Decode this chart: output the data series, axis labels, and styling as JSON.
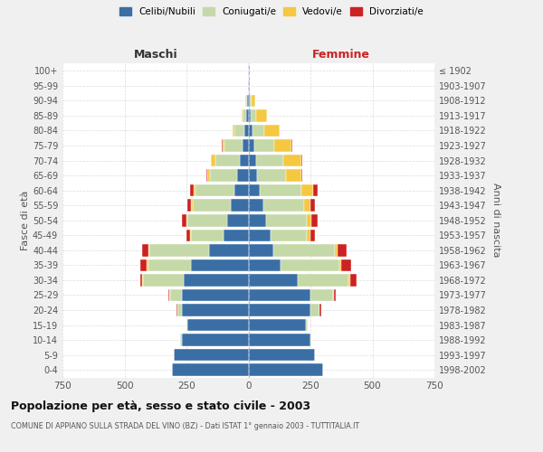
{
  "age_groups": [
    "0-4",
    "5-9",
    "10-14",
    "15-19",
    "20-24",
    "25-29",
    "30-34",
    "35-39",
    "40-44",
    "45-49",
    "50-54",
    "55-59",
    "60-64",
    "65-69",
    "70-74",
    "75-79",
    "80-84",
    "85-89",
    "90-94",
    "95-99",
    "100+"
  ],
  "birth_years": [
    "1998-2002",
    "1993-1997",
    "1988-1992",
    "1983-1987",
    "1978-1982",
    "1973-1977",
    "1968-1972",
    "1963-1967",
    "1958-1962",
    "1953-1957",
    "1948-1952",
    "1943-1947",
    "1938-1942",
    "1933-1937",
    "1928-1932",
    "1923-1927",
    "1918-1922",
    "1913-1917",
    "1908-1912",
    "1903-1907",
    "≤ 1902"
  ],
  "males": {
    "celibi": [
      310,
      300,
      270,
      245,
      270,
      270,
      260,
      230,
      160,
      100,
      85,
      70,
      55,
      45,
      35,
      25,
      15,
      8,
      5,
      2,
      1
    ],
    "coniugati": [
      0,
      0,
      5,
      5,
      15,
      45,
      165,
      175,
      240,
      130,
      160,
      155,
      160,
      110,
      100,
      70,
      40,
      15,
      5,
      1,
      0
    ],
    "vedovi": [
      0,
      0,
      0,
      0,
      2,
      3,
      3,
      5,
      5,
      5,
      5,
      5,
      5,
      12,
      15,
      10,
      8,
      5,
      2,
      0,
      0
    ],
    "divorziati": [
      0,
      0,
      0,
      0,
      3,
      5,
      8,
      25,
      25,
      15,
      20,
      15,
      15,
      3,
      3,
      2,
      2,
      0,
      0,
      0,
      0
    ]
  },
  "females": {
    "nubili": [
      300,
      270,
      250,
      230,
      250,
      250,
      200,
      130,
      100,
      90,
      70,
      60,
      45,
      35,
      30,
      25,
      15,
      10,
      5,
      2,
      1
    ],
    "coniugate": [
      0,
      0,
      5,
      10,
      35,
      90,
      205,
      235,
      250,
      145,
      165,
      165,
      170,
      115,
      110,
      80,
      50,
      20,
      8,
      2,
      0
    ],
    "vedove": [
      0,
      0,
      0,
      0,
      2,
      5,
      5,
      8,
      10,
      15,
      20,
      25,
      45,
      65,
      75,
      70,
      60,
      45,
      15,
      2,
      0
    ],
    "divorziate": [
      0,
      0,
      0,
      0,
      5,
      8,
      25,
      40,
      35,
      20,
      25,
      20,
      20,
      3,
      3,
      2,
      2,
      0,
      0,
      0,
      0
    ]
  },
  "colors": {
    "celibi": "#3a6ea5",
    "coniugati": "#c5d9a8",
    "vedovi": "#f5c842",
    "divorziati": "#cc2222"
  },
  "xlim": 750,
  "title": "Popolazione per età, sesso e stato civile - 2003",
  "subtitle": "COMUNE DI APPIANO SULLA STRADA DEL VINO (BZ) - Dati ISTAT 1° gennaio 2003 - TUTTITALIA.IT",
  "ylabel_left": "Fasce di età",
  "ylabel_right": "Anni di nascita",
  "xlabel_left": "Maschi",
  "xlabel_right": "Femmine",
  "legend_labels": [
    "Celibi/Nubili",
    "Coniugati/e",
    "Vedovi/e",
    "Divorziati/e"
  ],
  "bg_color": "#f0f0f0",
  "plot_bg_color": "#ffffff",
  "maschi_color": "#333333",
  "femmine_color": "#cc2222"
}
